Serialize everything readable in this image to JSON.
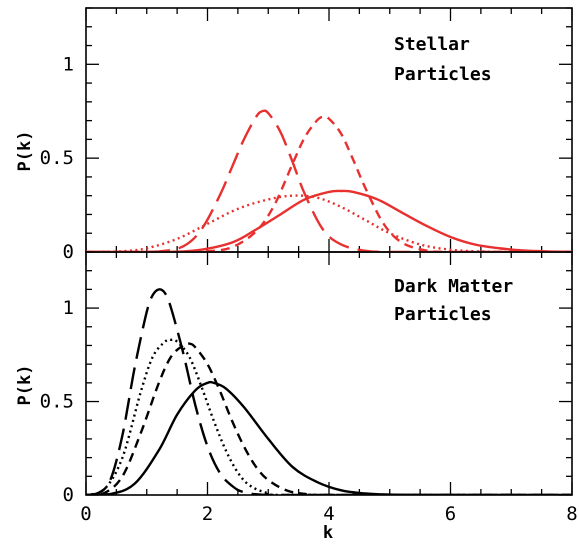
{
  "chart_data": [
    {
      "type": "line",
      "panel": "top",
      "annotation": [
        "Stellar",
        "Particles"
      ],
      "xlabel": "k",
      "ylabel": "P(k)",
      "xlim": [
        0,
        8
      ],
      "ylim": [
        0,
        1.3
      ],
      "xticks": [
        "0",
        "2",
        "4",
        "6",
        "8"
      ],
      "yticks": [
        0,
        0.5,
        1
      ],
      "ytick_labels": [
        "0",
        "0.5",
        "1"
      ],
      "grid": false,
      "color": "#e8302f",
      "series": [
        {
          "style": "long-dash",
          "x": [
            0.0,
            0.8,
            1.2,
            1.6,
            1.9,
            2.2,
            2.4,
            2.6,
            2.8,
            2.9,
            3.0,
            3.2,
            3.4,
            3.6,
            3.9,
            4.2,
            4.6,
            5.0,
            6.0,
            8.0
          ],
          "y": [
            0.0,
            0.0,
            0.003,
            0.03,
            0.12,
            0.3,
            0.45,
            0.6,
            0.72,
            0.75,
            0.74,
            0.64,
            0.48,
            0.31,
            0.12,
            0.04,
            0.006,
            0.0,
            0.0,
            0.0
          ]
        },
        {
          "style": "short-dash",
          "x": [
            0.0,
            1.6,
            2.0,
            2.4,
            2.8,
            3.1,
            3.4,
            3.6,
            3.8,
            3.9,
            4.0,
            4.2,
            4.4,
            4.6,
            4.9,
            5.2,
            5.6,
            6.0,
            7.0,
            8.0
          ],
          "y": [
            0.0,
            0.0,
            0.004,
            0.025,
            0.11,
            0.25,
            0.47,
            0.61,
            0.7,
            0.72,
            0.71,
            0.63,
            0.49,
            0.34,
            0.15,
            0.05,
            0.008,
            0.0,
            0.0,
            0.0
          ]
        },
        {
          "style": "dotted",
          "x": [
            0.0,
            0.6,
            1.0,
            1.5,
            2.0,
            2.5,
            3.0,
            3.4,
            3.8,
            4.2,
            4.6,
            5.0,
            5.5,
            6.0,
            6.5,
            7.0,
            8.0
          ],
          "y": [
            0.0,
            0.004,
            0.02,
            0.07,
            0.15,
            0.23,
            0.28,
            0.3,
            0.29,
            0.24,
            0.17,
            0.1,
            0.04,
            0.012,
            0.003,
            0.0,
            0.0
          ]
        },
        {
          "style": "solid",
          "x": [
            0.0,
            1.2,
            1.8,
            2.4,
            2.8,
            3.2,
            3.6,
            4.0,
            4.2,
            4.4,
            4.8,
            5.2,
            5.6,
            6.0,
            6.4,
            6.8,
            7.2,
            7.6,
            8.0
          ],
          "y": [
            0.0,
            0.0,
            0.008,
            0.05,
            0.12,
            0.2,
            0.28,
            0.32,
            0.325,
            0.32,
            0.28,
            0.21,
            0.14,
            0.08,
            0.04,
            0.02,
            0.008,
            0.003,
            0.001
          ]
        }
      ]
    },
    {
      "type": "line",
      "panel": "bottom",
      "annotation": [
        "Dark Matter",
        "Particles"
      ],
      "xlabel": "k",
      "ylabel": "P(k)",
      "xlim": [
        0,
        8
      ],
      "ylim": [
        0,
        1.3
      ],
      "xticks": [
        "0",
        "2",
        "4",
        "6",
        "8"
      ],
      "yticks": [
        0,
        0.5,
        1
      ],
      "ytick_labels": [
        "0",
        "0.5",
        "1"
      ],
      "grid": false,
      "color": "#000000",
      "series": [
        {
          "style": "long-dash",
          "x": [
            0.0,
            0.2,
            0.4,
            0.6,
            0.8,
            1.0,
            1.1,
            1.2,
            1.3,
            1.4,
            1.6,
            1.8,
            2.0,
            2.2,
            2.4,
            2.6,
            3.0,
            4.0,
            8.0
          ],
          "y": [
            0.0,
            0.01,
            0.08,
            0.32,
            0.68,
            0.98,
            1.07,
            1.1,
            1.08,
            1.0,
            0.76,
            0.48,
            0.26,
            0.12,
            0.05,
            0.015,
            0.0,
            0.0,
            0.0
          ]
        },
        {
          "style": "short-dash",
          "x": [
            0.0,
            0.3,
            0.6,
            0.9,
            1.2,
            1.4,
            1.6,
            1.7,
            1.8,
            2.0,
            2.2,
            2.4,
            2.6,
            2.8,
            3.0,
            3.3,
            3.6,
            4.0,
            8.0
          ],
          "y": [
            0.0,
            0.01,
            0.1,
            0.33,
            0.6,
            0.74,
            0.8,
            0.81,
            0.79,
            0.7,
            0.56,
            0.4,
            0.26,
            0.15,
            0.08,
            0.025,
            0.006,
            0.0,
            0.0
          ]
        },
        {
          "style": "dotted",
          "x": [
            0.0,
            0.3,
            0.6,
            0.9,
            1.1,
            1.3,
            1.4,
            1.5,
            1.7,
            1.9,
            2.1,
            2.3,
            2.5,
            2.7,
            3.0,
            3.4,
            8.0
          ],
          "y": [
            0.0,
            0.03,
            0.2,
            0.55,
            0.74,
            0.82,
            0.83,
            0.82,
            0.74,
            0.58,
            0.4,
            0.24,
            0.12,
            0.05,
            0.01,
            0.0,
            0.0
          ]
        },
        {
          "style": "solid",
          "x": [
            0.0,
            0.4,
            0.8,
            1.2,
            1.5,
            1.8,
            2.0,
            2.1,
            2.3,
            2.6,
            3.0,
            3.4,
            3.8,
            4.2,
            4.6,
            5.0,
            5.6,
            6.0,
            8.0
          ],
          "y": [
            0.0,
            0.005,
            0.06,
            0.24,
            0.43,
            0.56,
            0.6,
            0.6,
            0.57,
            0.47,
            0.3,
            0.15,
            0.07,
            0.025,
            0.008,
            0.002,
            0.0,
            0.0,
            0.0
          ]
        }
      ]
    }
  ]
}
